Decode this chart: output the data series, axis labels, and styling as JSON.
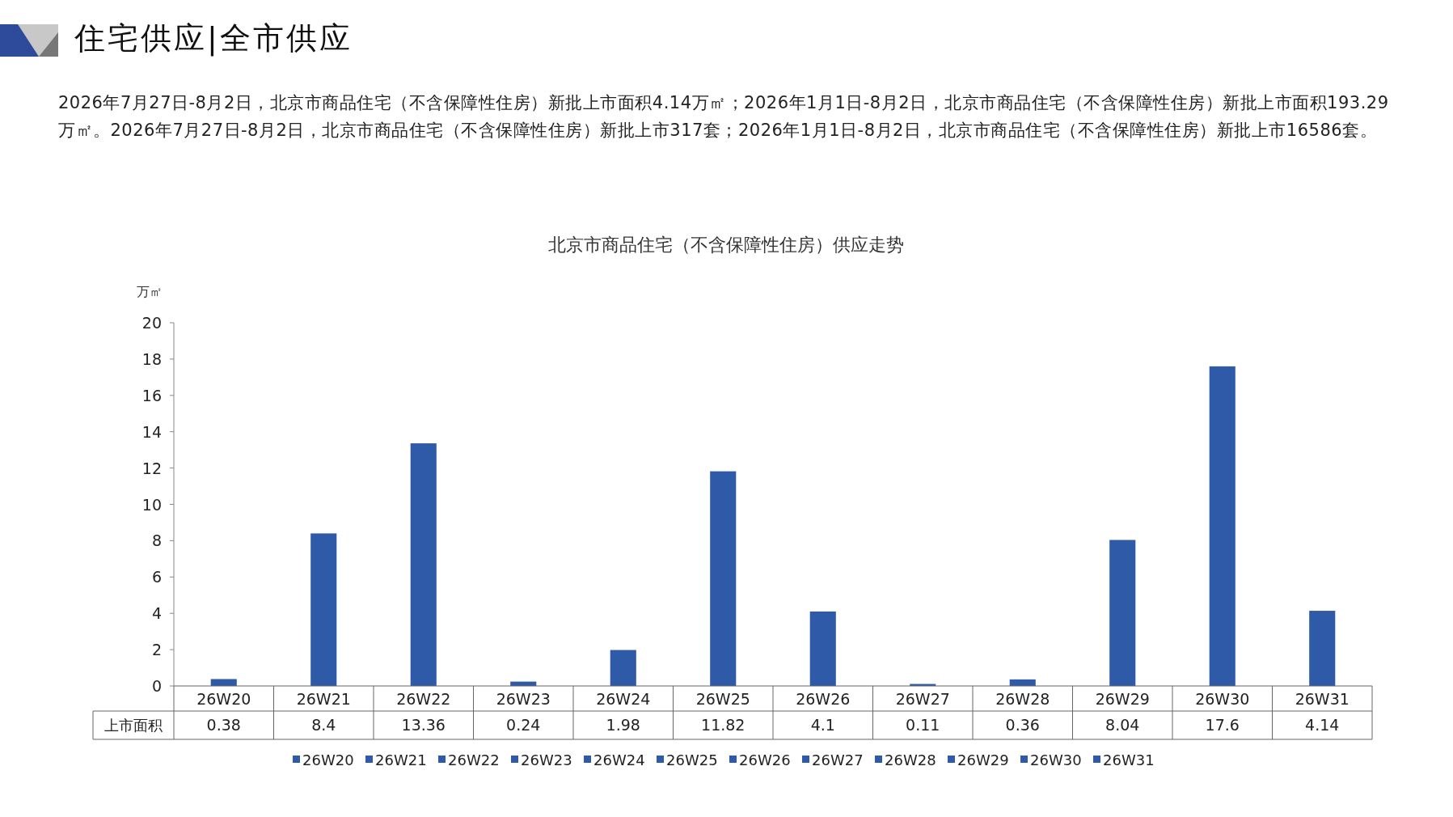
{
  "chart_data": {
    "type": "bar",
    "title": "北京市商品住宅（不含保障性住房）供应走势",
    "annotations": [
      "住宅供应|全市供应",
      "2026年7月27日-8月2日，北京市商品住宅（不含保障性住房）新批上市面积4.14万㎡；2026年1月1日-8月2日，北京市商品住宅（不含保障性住房）新批上市面积193.29万㎡。2026年7月27日-8月2日，北京市商品住宅（不含保障性住房）新批上市317套；2026年1月1日-8月2日，北京市商品住宅（不含保障性住房）新批上市16586套。"
    ],
    "ylabel": "万㎡",
    "categories": [
      "26W20",
      "26W21",
      "26W22",
      "26W23",
      "26W24",
      "26W25",
      "26W26",
      "26W27",
      "26W28",
      "26W29",
      "26W30",
      "26W31"
    ],
    "series": [
      {
        "name": "上市面积",
        "color": "#2e5aa8",
        "values": [
          0.38,
          8.4,
          13.36,
          0.24,
          1.98,
          11.82,
          4.1,
          0.11,
          0.36,
          8.04,
          17.6,
          4.14
        ]
      }
    ],
    "ylim": [
      0,
      20
    ],
    "yticks": [
      0,
      2,
      4,
      6,
      8,
      10,
      12,
      14,
      16,
      18,
      20
    ],
    "data_labels": true,
    "legend": "bottom"
  }
}
